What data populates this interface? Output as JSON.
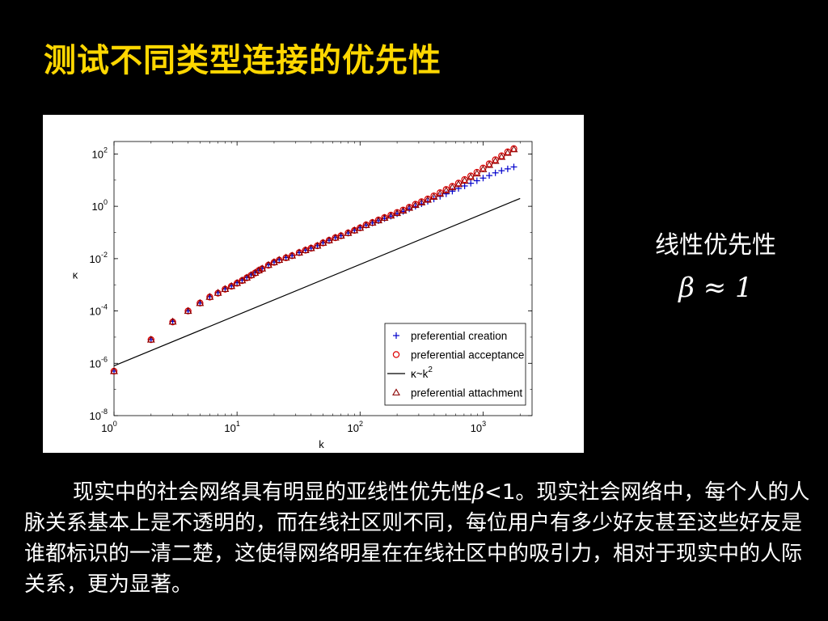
{
  "slide": {
    "title": "测试不同类型连接的优先性",
    "side_title": "线性优先性",
    "side_formula": "β ≈ 1",
    "para_pre": "现实中的社会网络具有明显的亚线性优先性",
    "para_beta": "β",
    "para_post": "<1。现实社会网络中，每个人的人脉关系基本上是不透明的，而在线社区则不同，每位用户有多少好友甚至这些好友是谁都标识的一清二楚，这使得网络明星在在线社区中的吸引力，相对于现实中的人际关系，更为显著。"
  },
  "chart_data": {
    "type": "scatter",
    "xscale": "log",
    "yscale": "log",
    "xlim": [
      1,
      2500
    ],
    "ylim": [
      1e-08,
      300
    ],
    "xlabel": "k",
    "ylabel": "κ",
    "xticks": [
      {
        "value": 1,
        "base": "10",
        "exp": "0"
      },
      {
        "value": 10,
        "base": "10",
        "exp": "1"
      },
      {
        "value": 100,
        "base": "10",
        "exp": "2"
      },
      {
        "value": 1000,
        "base": "10",
        "exp": "3"
      }
    ],
    "yticks": [
      {
        "value": 1e-08,
        "base": "10",
        "exp": "-8"
      },
      {
        "value": 1e-06,
        "base": "10",
        "exp": "-6"
      },
      {
        "value": 0.0001,
        "base": "10",
        "exp": "-4"
      },
      {
        "value": 0.01,
        "base": "10",
        "exp": "-2"
      },
      {
        "value": 1,
        "base": "10",
        "exp": "0"
      },
      {
        "value": 100,
        "base": "10",
        "exp": "2"
      }
    ],
    "legend_position": "bottom-right",
    "legend": [
      {
        "label": "preferential creation",
        "marker": "plus",
        "color": "#0000cc"
      },
      {
        "label": "preferential acceptance",
        "marker": "circle",
        "color": "#dd0000"
      },
      {
        "label": "κ~k",
        "label_sup": "2",
        "marker": "line",
        "color": "#000000"
      },
      {
        "label": "preferential attachment",
        "marker": "triangle",
        "color": "#8b0000"
      }
    ],
    "reference_line": {
      "name": "κ~k2",
      "x": [
        1,
        2000
      ],
      "y": [
        8e-07,
        2.0
      ]
    },
    "series": [
      {
        "name": "preferential creation",
        "marker": "plus",
        "color": "#0000cc",
        "x": [
          1,
          2,
          3,
          4,
          5,
          6,
          7,
          8,
          9,
          10,
          11,
          12,
          13,
          14,
          15,
          16,
          18,
          20,
          22,
          25,
          28,
          32,
          36,
          40,
          45,
          50,
          56,
          63,
          70,
          80,
          90,
          100,
          112,
          126,
          141,
          158,
          178,
          200,
          224,
          251,
          282,
          316,
          355,
          398,
          447,
          501,
          562,
          631,
          708,
          794,
          891,
          1000,
          1122,
          1259,
          1413,
          1585,
          1778
        ],
        "y": [
          5e-07,
          8e-06,
          4e-05,
          0.0001,
          0.0002,
          0.00035,
          0.0005,
          0.0007,
          0.0009,
          0.0012,
          0.0015,
          0.0019,
          0.0024,
          0.0029,
          0.0036,
          0.0042,
          0.0058,
          0.0074,
          0.009,
          0.011,
          0.013,
          0.017,
          0.021,
          0.025,
          0.031,
          0.04,
          0.05,
          0.063,
          0.075,
          0.095,
          0.12,
          0.15,
          0.19,
          0.23,
          0.28,
          0.34,
          0.42,
          0.52,
          0.64,
          0.8,
          1.0,
          1.25,
          1.55,
          1.9,
          2.4,
          3.0,
          3.8,
          4.8,
          6.0,
          7.6,
          9.5,
          12.0,
          15.0,
          19.0,
          23.0,
          27.0,
          32.0
        ]
      },
      {
        "name": "preferential acceptance",
        "marker": "circle",
        "color": "#dd0000",
        "x": [
          1,
          2,
          3,
          4,
          5,
          6,
          7,
          8,
          9,
          10,
          11,
          12,
          13,
          14,
          15,
          16,
          18,
          20,
          22,
          25,
          28,
          32,
          36,
          40,
          45,
          50,
          56,
          63,
          70,
          80,
          90,
          100,
          112,
          126,
          141,
          158,
          178,
          200,
          224,
          251,
          282,
          316,
          355,
          398,
          447,
          501,
          562,
          631,
          708,
          794,
          891,
          1000,
          1122,
          1259,
          1413,
          1585,
          1778
        ],
        "y": [
          5e-07,
          8e-06,
          3.8e-05,
          0.0001,
          0.0002,
          0.00034,
          0.00048,
          0.00068,
          0.00088,
          0.00115,
          0.00145,
          0.00185,
          0.0023,
          0.0028,
          0.0035,
          0.0041,
          0.0056,
          0.0072,
          0.0088,
          0.0108,
          0.013,
          0.017,
          0.021,
          0.025,
          0.031,
          0.04,
          0.05,
          0.063,
          0.075,
          0.096,
          0.12,
          0.15,
          0.195,
          0.24,
          0.3,
          0.37,
          0.46,
          0.58,
          0.72,
          0.92,
          1.2,
          1.5,
          1.9,
          2.5,
          3.3,
          4.4,
          5.8,
          7.7,
          10.5,
          14.5,
          20.0,
          29.0,
          42.0,
          60.0,
          85.0,
          120.0,
          160.0
        ]
      },
      {
        "name": "preferential attachment",
        "marker": "triangle",
        "color": "#8b0000",
        "x": [
          1,
          2,
          3,
          4,
          5,
          6,
          7,
          8,
          9,
          10,
          11,
          12,
          13,
          14,
          15,
          16,
          18,
          20,
          22,
          25,
          28,
          32,
          36,
          40,
          45,
          50,
          56,
          63,
          70,
          80,
          90,
          100,
          112,
          126,
          141,
          158,
          178,
          200,
          224,
          251,
          282,
          316,
          355,
          398,
          447,
          501,
          562,
          631,
          708,
          794,
          891,
          1000,
          1122,
          1259,
          1413,
          1585,
          1778
        ],
        "y": [
          5e-07,
          8e-06,
          3.9e-05,
          0.0001,
          0.0002,
          0.000345,
          0.00049,
          0.00069,
          0.00089,
          0.00117,
          0.00147,
          0.00187,
          0.00235,
          0.00285,
          0.00355,
          0.00415,
          0.0057,
          0.0073,
          0.0089,
          0.0109,
          0.013,
          0.017,
          0.021,
          0.025,
          0.031,
          0.04,
          0.05,
          0.063,
          0.075,
          0.095,
          0.12,
          0.15,
          0.192,
          0.235,
          0.29,
          0.36,
          0.44,
          0.55,
          0.68,
          0.87,
          1.12,
          1.4,
          1.78,
          2.3,
          3.0,
          4.0,
          5.3,
          7.0,
          9.5,
          13.0,
          18.0,
          26.0,
          38.0,
          54.0,
          77.0,
          110.0,
          150.0
        ]
      }
    ]
  }
}
